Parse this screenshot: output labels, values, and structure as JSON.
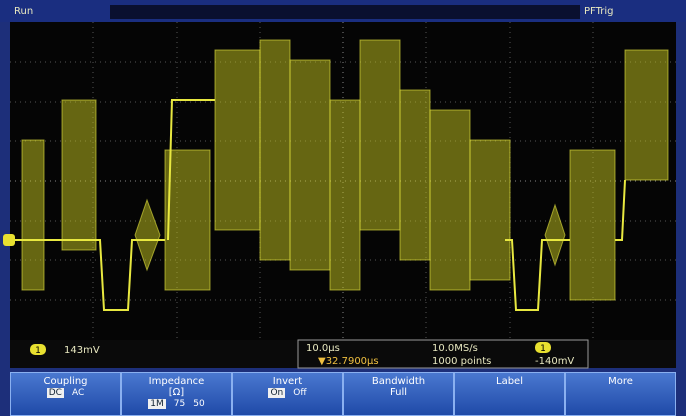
{
  "status": {
    "state": "Run",
    "trigger_mode": "PFTrig"
  },
  "channel": {
    "number": "1",
    "scale": "143mV"
  },
  "readout": {
    "timebase": "10.0µs",
    "position": "▼32.7900µs",
    "sample_rate": "10.0MS/s",
    "record_length": "1000 points",
    "trigger_channel": "1",
    "trigger_level": "-140mV"
  },
  "menu": [
    {
      "label": "Coupling",
      "options": [
        "DC",
        "AC"
      ]
    },
    {
      "label": "Impedance",
      "sub": "[Ω]",
      "options": [
        "1M",
        "75",
        "50"
      ]
    },
    {
      "label": "Invert",
      "options": [
        "On",
        "Off"
      ]
    },
    {
      "label": "Bandwidth",
      "sub": "Full",
      "options": []
    },
    {
      "label": "Label",
      "options": []
    },
    {
      "label": "More",
      "options": []
    }
  ]
}
